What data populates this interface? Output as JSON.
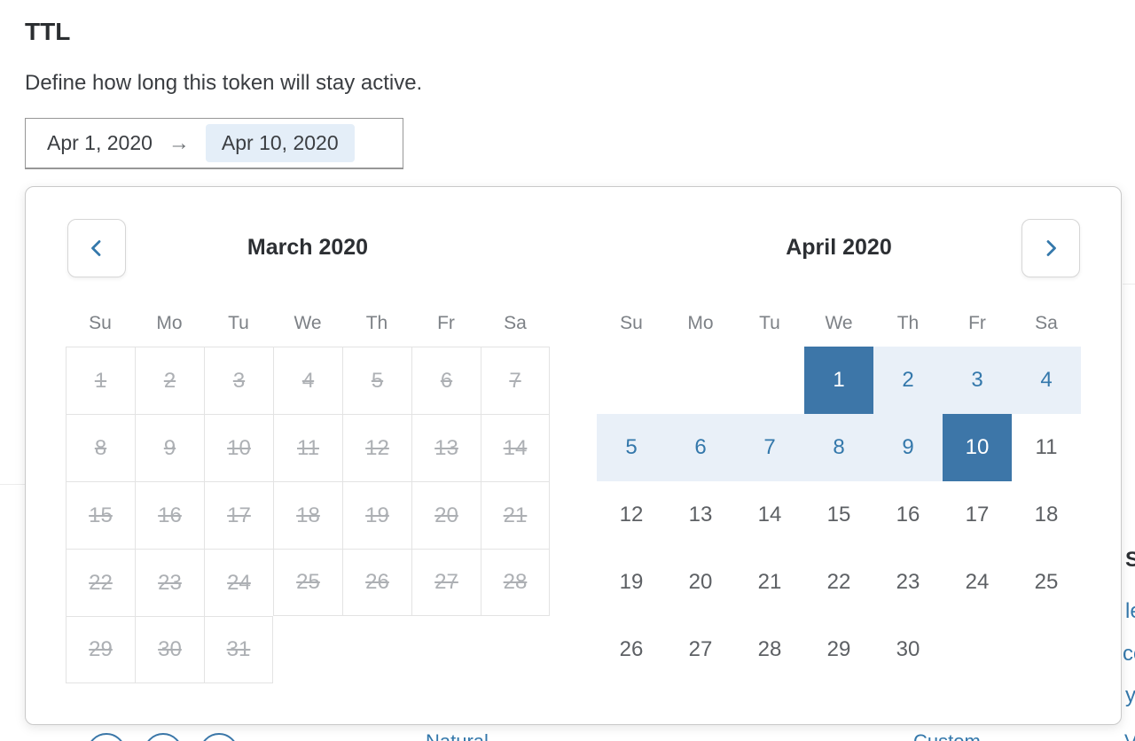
{
  "header": {
    "title": "TTL",
    "description": "Define how long this token will stay active."
  },
  "range_input": {
    "start": "Apr 1, 2020",
    "arrow": "→",
    "end": "Apr 10, 2020"
  },
  "calendar": {
    "prev_label": "Previous month",
    "next_label": "Next month",
    "weekdays": [
      "Su",
      "Mo",
      "Tu",
      "We",
      "Th",
      "Fr",
      "Sa"
    ],
    "months": [
      {
        "title": "March 2020",
        "weeks": [
          [
            {
              "d": 1,
              "s": "dis"
            },
            {
              "d": 2,
              "s": "dis"
            },
            {
              "d": 3,
              "s": "dis"
            },
            {
              "d": 4,
              "s": "dis"
            },
            {
              "d": 5,
              "s": "dis"
            },
            {
              "d": 6,
              "s": "dis"
            },
            {
              "d": 7,
              "s": "dis"
            }
          ],
          [
            {
              "d": 8,
              "s": "dis"
            },
            {
              "d": 9,
              "s": "dis"
            },
            {
              "d": 10,
              "s": "dis"
            },
            {
              "d": 11,
              "s": "dis"
            },
            {
              "d": 12,
              "s": "dis"
            },
            {
              "d": 13,
              "s": "dis"
            },
            {
              "d": 14,
              "s": "dis"
            }
          ],
          [
            {
              "d": 15,
              "s": "dis"
            },
            {
              "d": 16,
              "s": "dis"
            },
            {
              "d": 17,
              "s": "dis"
            },
            {
              "d": 18,
              "s": "dis"
            },
            {
              "d": 19,
              "s": "dis"
            },
            {
              "d": 20,
              "s": "dis"
            },
            {
              "d": 21,
              "s": "dis"
            }
          ],
          [
            {
              "d": 22,
              "s": "dis"
            },
            {
              "d": 23,
              "s": "dis"
            },
            {
              "d": 24,
              "s": "dis"
            },
            {
              "d": 25,
              "s": "dis"
            },
            {
              "d": 26,
              "s": "dis"
            },
            {
              "d": 27,
              "s": "dis"
            },
            {
              "d": 28,
              "s": "dis"
            }
          ],
          [
            {
              "d": 29,
              "s": "dis"
            },
            {
              "d": 30,
              "s": "dis"
            },
            {
              "d": 31,
              "s": "dis"
            },
            null,
            null,
            null,
            null
          ]
        ]
      },
      {
        "title": "April 2020",
        "weeks": [
          [
            null,
            null,
            null,
            {
              "d": 1,
              "s": "start"
            },
            {
              "d": 2,
              "s": "range"
            },
            {
              "d": 3,
              "s": "range"
            },
            {
              "d": 4,
              "s": "range"
            }
          ],
          [
            {
              "d": 5,
              "s": "range"
            },
            {
              "d": 6,
              "s": "range"
            },
            {
              "d": 7,
              "s": "range"
            },
            {
              "d": 8,
              "s": "range"
            },
            {
              "d": 9,
              "s": "range"
            },
            {
              "d": 10,
              "s": "end"
            },
            {
              "d": 11,
              "s": ""
            }
          ],
          [
            {
              "d": 12,
              "s": ""
            },
            {
              "d": 13,
              "s": ""
            },
            {
              "d": 14,
              "s": ""
            },
            {
              "d": 15,
              "s": ""
            },
            {
              "d": 16,
              "s": ""
            },
            {
              "d": 17,
              "s": ""
            },
            {
              "d": 18,
              "s": ""
            }
          ],
          [
            {
              "d": 19,
              "s": ""
            },
            {
              "d": 20,
              "s": ""
            },
            {
              "d": 21,
              "s": ""
            },
            {
              "d": 22,
              "s": ""
            },
            {
              "d": 23,
              "s": ""
            },
            {
              "d": 24,
              "s": ""
            },
            {
              "d": 25,
              "s": ""
            }
          ],
          [
            {
              "d": 26,
              "s": ""
            },
            {
              "d": 27,
              "s": ""
            },
            {
              "d": 28,
              "s": ""
            },
            {
              "d": 29,
              "s": ""
            },
            {
              "d": 30,
              "s": ""
            },
            null,
            null
          ]
        ]
      }
    ]
  },
  "background": {
    "fragments": {
      "heading": "Su",
      "link1": "le",
      "link2": "co",
      "link3": "y",
      "bottom1": "Natural",
      "bottom2": "Custom",
      "bottom3": "Vi"
    }
  },
  "colors": {
    "selected_bg": "#3d76a8",
    "range_bg": "#e9f0f8",
    "range_text": "#3478ab",
    "disabled_text": "#adb0b4",
    "accent_blue": "#3478ab"
  }
}
